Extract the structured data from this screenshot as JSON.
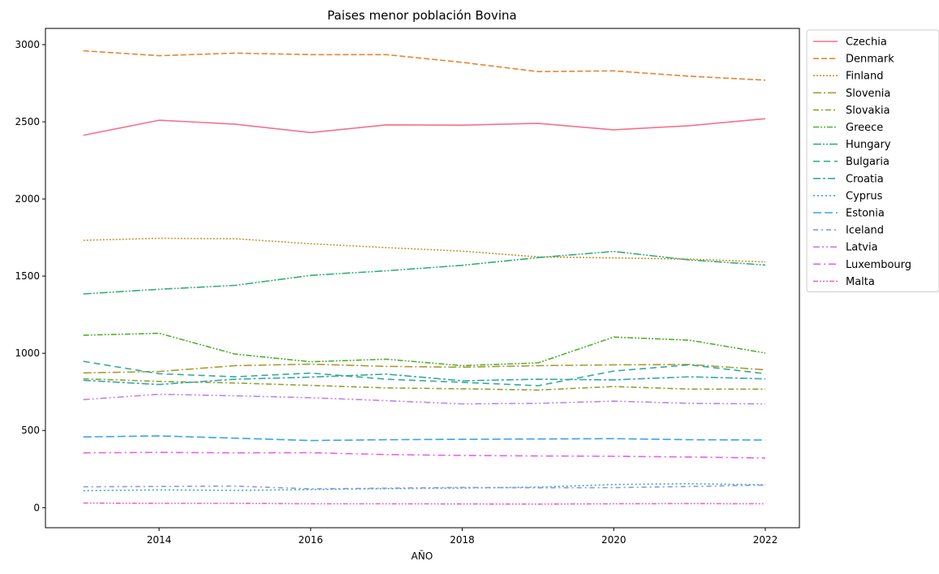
{
  "chart_data": {
    "type": "line",
    "title": "Paises menor población Bovina",
    "xlabel": "AÑO",
    "ylabel": "",
    "x": [
      2013,
      2014,
      2015,
      2016,
      2017,
      2018,
      2019,
      2020,
      2021,
      2022
    ],
    "xlim": [
      2012.5,
      2022.45
    ],
    "ylim": [
      -130,
      3105
    ],
    "xticks": [
      2014,
      2016,
      2018,
      2020,
      2022
    ],
    "yticks": [
      0,
      500,
      1000,
      1500,
      2000,
      2500,
      3000
    ],
    "grid": false,
    "legend_position": "outside-top-right",
    "series": [
      {
        "name": "Czechia",
        "color": "#f77189",
        "dash": "solid",
        "values": [
          2413,
          2510,
          2485,
          2430,
          2480,
          2478,
          2490,
          2448,
          2475,
          2520
        ]
      },
      {
        "name": "Denmark",
        "color": "#e98532",
        "dash": "dashed",
        "values": [
          2960,
          2928,
          2945,
          2935,
          2935,
          2885,
          2825,
          2830,
          2795,
          2770
        ]
      },
      {
        "name": "Finland",
        "color": "#c69432",
        "dash": "dotted",
        "values": [
          1732,
          1745,
          1742,
          1710,
          1685,
          1662,
          1625,
          1618,
          1610,
          1592
        ]
      },
      {
        "name": "Slovenia",
        "color": "#aa9c32",
        "dash": "dashdot-long",
        "values": [
          873,
          882,
          920,
          930,
          915,
          910,
          920,
          925,
          928,
          893
        ]
      },
      {
        "name": "Slovakia",
        "color": "#8da232",
        "dash": "dashdot",
        "values": [
          835,
          818,
          808,
          792,
          776,
          770,
          762,
          785,
          768,
          768
        ]
      },
      {
        "name": "Greece",
        "color": "#50b131",
        "dash": "dashdotdot",
        "values": [
          1117,
          1130,
          995,
          945,
          962,
          920,
          938,
          1105,
          1085,
          1002
        ]
      },
      {
        "name": "Hungary",
        "color": "#34ae7a",
        "dash": "dashdotdot-long",
        "values": [
          1385,
          1415,
          1440,
          1505,
          1535,
          1570,
          1620,
          1660,
          1605,
          1572
        ]
      },
      {
        "name": "Bulgaria",
        "color": "#36ab99",
        "dash": "dash-long-gap",
        "values": [
          948,
          868,
          848,
          872,
          832,
          812,
          790,
          885,
          925,
          868
        ]
      },
      {
        "name": "Croatia",
        "color": "#37a8ac",
        "dash": "dashdot-med",
        "values": [
          825,
          798,
          832,
          846,
          865,
          822,
          832,
          828,
          848,
          834
        ]
      },
      {
        "name": "Cyprus",
        "color": "#39a7bd",
        "dash": "dotted-fine",
        "values": [
          110,
          115,
          112,
          117,
          123,
          127,
          133,
          150,
          155,
          148
        ]
      },
      {
        "name": "Estonia",
        "color": "#3ba3ec",
        "dash": "dashed-long",
        "values": [
          458,
          465,
          450,
          435,
          440,
          443,
          445,
          447,
          440,
          438
        ]
      },
      {
        "name": "Iceland",
        "color": "#8b97ea",
        "dash": "dash-dot-spaced",
        "values": [
          135,
          137,
          140,
          122,
          126,
          131,
          129,
          130,
          137,
          146
        ]
      },
      {
        "name": "Latvia",
        "color": "#c680ef",
        "dash": "dashdotdot-med",
        "values": [
          700,
          735,
          725,
          712,
          693,
          672,
          676,
          690,
          676,
          672
        ]
      },
      {
        "name": "Luxembourg",
        "color": "#ee60e1",
        "dash": "dashdot-loose",
        "values": [
          355,
          358,
          355,
          356,
          344,
          338,
          335,
          333,
          328,
          322
        ]
      },
      {
        "name": "Malta",
        "color": "#f565c0",
        "dash": "dashdotdotdot",
        "values": [
          30,
          28,
          28,
          25,
          25,
          24,
          23,
          25,
          26,
          25
        ]
      }
    ]
  }
}
